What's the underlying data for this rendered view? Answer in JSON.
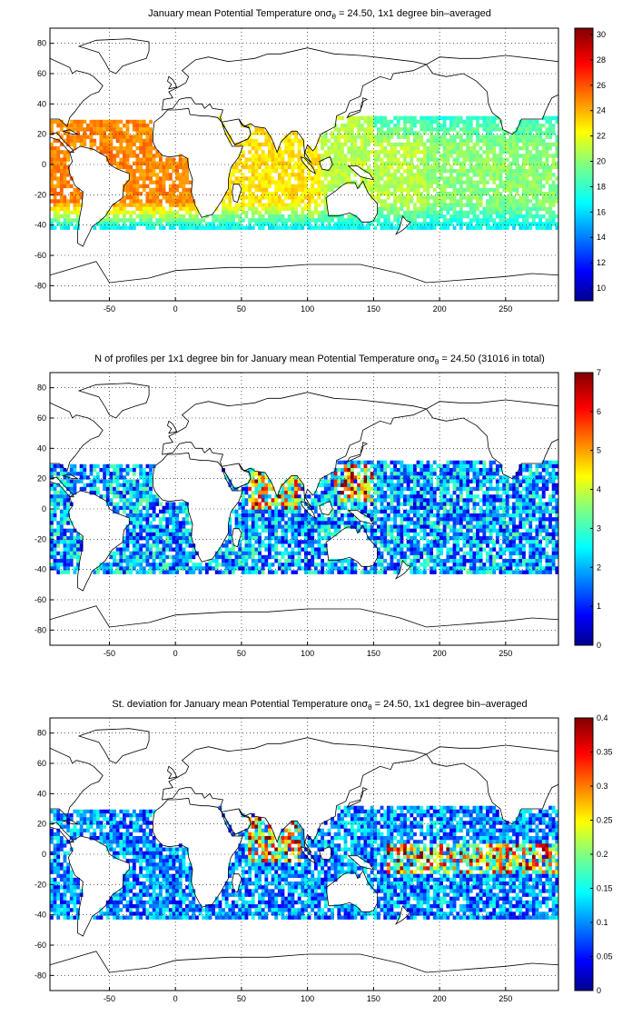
{
  "chart_data": [
    {
      "type": "heatmap",
      "title_prefix": "January mean Potential Temperature on",
      "title_symbol": "σ",
      "title_subscript": "θ",
      "title_suffix": " = 24.50, 1x1 degree bin–averaged",
      "xlabel": "",
      "ylabel": "",
      "xlim": [
        -95,
        290
      ],
      "ylim": [
        -90,
        90
      ],
      "xticks": [
        -50,
        0,
        50,
        100,
        150,
        200,
        250
      ],
      "yticks": [
        80,
        60,
        40,
        20,
        0,
        -20,
        -40,
        -60,
        -80
      ],
      "grid": true,
      "colorbar": {
        "min": 9,
        "max": 30.5,
        "ticks": [
          30,
          28,
          26,
          24,
          22,
          20,
          18,
          16,
          14,
          12,
          10
        ],
        "colormap": "jet"
      },
      "field_summary": {
        "atlantic_tropics": 25,
        "indian_ocean": 23,
        "western_pacific": 21,
        "eastern_pacific": 20,
        "south_edge_40S": 17,
        "north_pacific_20N": 18
      }
    },
    {
      "type": "heatmap",
      "title_prefix": "N of profiles per 1x1 degree bin for January mean Potential Temperature on",
      "title_symbol": "σ",
      "title_subscript": "θ",
      "title_suffix": " = 24.50 (31016 in total)",
      "xlabel": "",
      "ylabel": "",
      "xlim": [
        -95,
        290
      ],
      "ylim": [
        -90,
        90
      ],
      "xticks": [
        -50,
        0,
        50,
        100,
        150,
        200,
        250
      ],
      "yticks": [
        80,
        60,
        40,
        20,
        0,
        -20,
        -40,
        -60,
        -80
      ],
      "grid": true,
      "colorbar": {
        "min": 0,
        "max": 7,
        "ticks": [
          7,
          6,
          5,
          4,
          3,
          2,
          1,
          0
        ],
        "colormap": "jet"
      },
      "total_profiles": 31016,
      "field_summary": {
        "typical_count": 2,
        "max_count": 7,
        "dense_regions": [
          "western pacific 20N",
          "arabian sea",
          "bay of bengal"
        ]
      }
    },
    {
      "type": "heatmap",
      "title_prefix": "St. deviation for January mean Potential Temperature on",
      "title_symbol": "σ",
      "title_subscript": "θ",
      "title_suffix": " = 24.50, 1x1 degree bin–averaged",
      "xlabel": "",
      "ylabel": "",
      "xlim": [
        -95,
        290
      ],
      "ylim": [
        -90,
        90
      ],
      "xticks": [
        -50,
        0,
        50,
        100,
        150,
        200,
        250
      ],
      "yticks": [
        80,
        60,
        40,
        20,
        0,
        -20,
        -40,
        -60,
        -80
      ],
      "grid": true,
      "colorbar": {
        "min": 0,
        "max": 0.4,
        "ticks": [
          0.4,
          0.35,
          0.3,
          0.25,
          0.2,
          0.15,
          0.1,
          0.05,
          0
        ],
        "colormap": "jet"
      },
      "field_summary": {
        "typical_std": 0.1,
        "high_std_regions": [
          "arabian sea",
          "bay of bengal",
          "equatorial pacific"
        ],
        "max_std": 0.4
      }
    }
  ]
}
